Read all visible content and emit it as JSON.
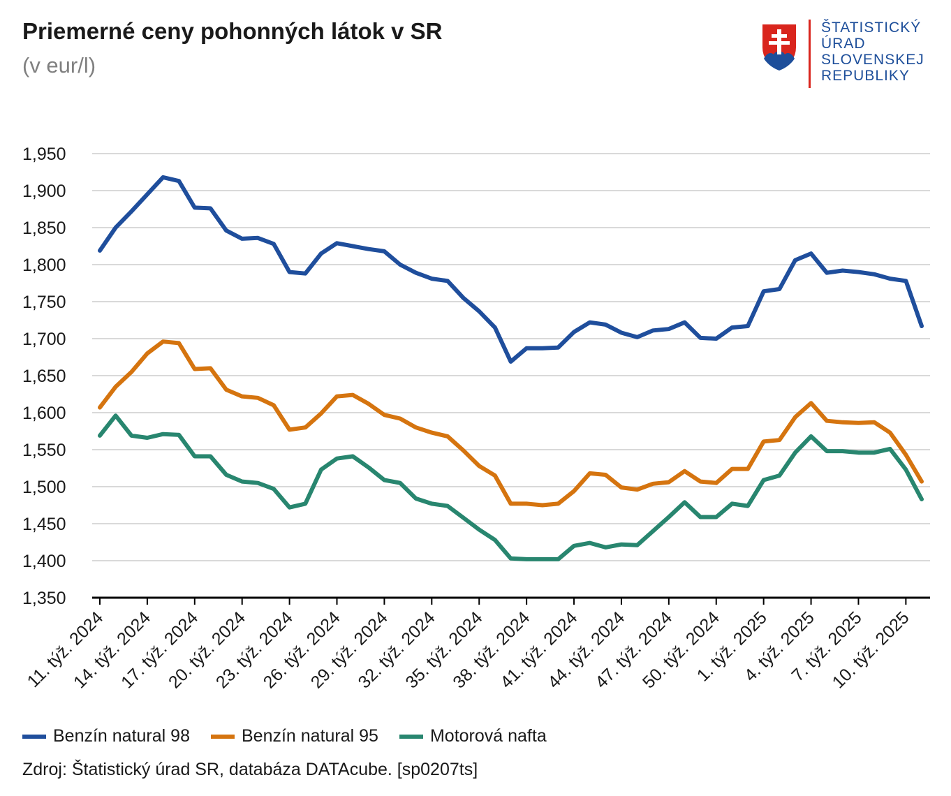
{
  "header": {
    "title": "Priemerné ceny pohonných látok v SR",
    "subtitle": "(v eur/l)"
  },
  "logo": {
    "lines": [
      "ŠTATISTICKÝ",
      "ÚRAD",
      "SLOVENSKEJ",
      "REPUBLIKY"
    ],
    "emblem": "slovak-coat-of-arms-icon"
  },
  "chart_data": {
    "type": "line",
    "title": "Priemerné ceny pohonných látok v SR",
    "subtitle": "(v eur/l)",
    "xlabel": "",
    "ylabel": "",
    "ylim": [
      1.35,
      1.95
    ],
    "yticks": [
      "1,350",
      "1,400",
      "1,450",
      "1,500",
      "1,550",
      "1,600",
      "1,650",
      "1,700",
      "1,750",
      "1,800",
      "1,850",
      "1,900",
      "1,950"
    ],
    "grid": true,
    "legend_position": "bottom-left",
    "categories": [
      "11. týž. 2024",
      "12. týž. 2024",
      "13. týž. 2024",
      "14. týž. 2024",
      "15. týž. 2024",
      "16. týž. 2024",
      "17. týž. 2024",
      "18. týž. 2024",
      "19. týž. 2024",
      "20. týž. 2024",
      "21. týž. 2024",
      "22. týž. 2024",
      "23. týž. 2024",
      "24. týž. 2024",
      "25. týž. 2024",
      "26. týž. 2024",
      "27. týž. 2024",
      "28. týž. 2024",
      "29. týž. 2024",
      "30. týž. 2024",
      "31. týž. 2024",
      "32. týž. 2024",
      "33. týž. 2024",
      "34. týž. 2024",
      "35. týž. 2024",
      "36. týž. 2024",
      "37. týž. 2024",
      "38. týž. 2024",
      "39. týž. 2024",
      "40. týž. 2024",
      "41. týž. 2024",
      "42. týž. 2024",
      "43. týž. 2024",
      "44. týž. 2024",
      "45. týž. 2024",
      "46. týž. 2024",
      "47. týž. 2024",
      "48. týž. 2024",
      "49. týž. 2024",
      "50. týž. 2024",
      "51. týž. 2024",
      "52. týž. 2024",
      "1. týž. 2025",
      "2. týž. 2025",
      "3. týž. 2025",
      "4. týž. 2025",
      "5. týž. 2025",
      "6. týž. 2025",
      "7. týž. 2025",
      "8. týž. 2025",
      "9. týž. 2025",
      "10. týž. 2025",
      "11. týž. 2025"
    ],
    "labeled_categories": [
      "11. týž. 2024",
      "14. týž. 2024",
      "17. týž. 2024",
      "20. týž. 2024",
      "23. týž. 2024",
      "26. týž. 2024",
      "29. týž. 2024",
      "32. týž. 2024",
      "35. týž. 2024",
      "38. týž. 2024",
      "41. týž. 2024",
      "44. týž. 2024",
      "47. týž. 2024",
      "50. týž. 2024",
      "1. týž. 2025",
      "4. týž. 2025",
      "7. týž. 2025",
      "10. týž. 2025"
    ],
    "series": [
      {
        "name": "Benzín natural 98",
        "color": "#1f4e9c",
        "values": [
          1.819,
          1.85,
          1.872,
          1.895,
          1.918,
          1.913,
          1.877,
          1.876,
          1.846,
          1.835,
          1.836,
          1.828,
          1.79,
          1.788,
          1.815,
          1.829,
          1.825,
          1.821,
          1.818,
          1.8,
          1.789,
          1.781,
          1.778,
          1.755,
          1.737,
          1.715,
          1.669,
          1.687,
          1.687,
          1.688,
          1.709,
          1.722,
          1.719,
          1.708,
          1.702,
          1.711,
          1.713,
          1.722,
          1.701,
          1.7,
          1.715,
          1.717,
          1.764,
          1.767,
          1.806,
          1.815,
          1.789,
          1.792,
          1.79,
          1.787,
          1.781,
          1.778,
          1.717
        ]
      },
      {
        "name": "Benzín natural 95",
        "color": "#d5740f",
        "values": [
          1.607,
          1.635,
          1.655,
          1.68,
          1.696,
          1.694,
          1.659,
          1.66,
          1.631,
          1.622,
          1.62,
          1.61,
          1.577,
          1.58,
          1.599,
          1.622,
          1.624,
          1.612,
          1.597,
          1.592,
          1.58,
          1.573,
          1.568,
          1.549,
          1.528,
          1.515,
          1.477,
          1.477,
          1.475,
          1.477,
          1.494,
          1.518,
          1.516,
          1.499,
          1.496,
          1.504,
          1.506,
          1.521,
          1.507,
          1.505,
          1.524,
          1.524,
          1.561,
          1.563,
          1.594,
          1.613,
          1.589,
          1.587,
          1.586,
          1.587,
          1.573,
          1.543,
          1.507
        ]
      },
      {
        "name": "Motorová nafta",
        "color": "#28866f",
        "values": [
          1.569,
          1.596,
          1.569,
          1.566,
          1.571,
          1.57,
          1.541,
          1.541,
          1.516,
          1.507,
          1.505,
          1.497,
          1.472,
          1.477,
          1.523,
          1.538,
          1.541,
          1.526,
          1.509,
          1.505,
          1.484,
          1.477,
          1.474,
          1.458,
          1.442,
          1.428,
          1.403,
          1.402,
          1.402,
          1.402,
          1.42,
          1.424,
          1.418,
          1.422,
          1.421,
          1.44,
          1.459,
          1.479,
          1.459,
          1.459,
          1.477,
          1.474,
          1.509,
          1.515,
          1.546,
          1.568,
          1.548,
          1.548,
          1.546,
          1.546,
          1.551,
          1.523,
          1.483
        ]
      }
    ]
  },
  "legend": [
    {
      "label": "Benzín natural 98",
      "color": "#1f4e9c"
    },
    {
      "label": "Benzín natural 95",
      "color": "#d5740f"
    },
    {
      "label": "Motorová nafta",
      "color": "#28866f"
    }
  ],
  "source": "Zdroj: Štatistický úrad SR, databáza DATAcube. [sp0207ts]"
}
